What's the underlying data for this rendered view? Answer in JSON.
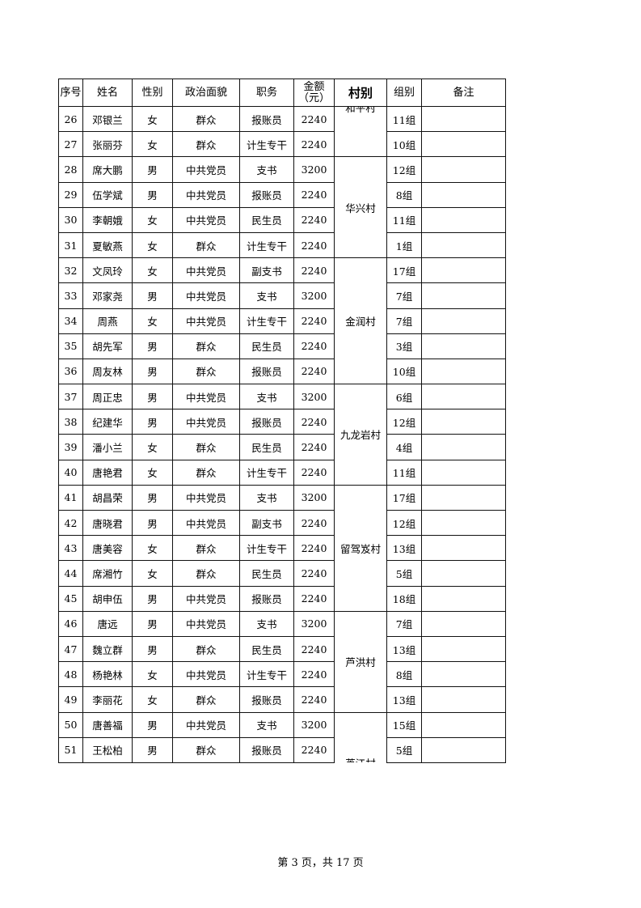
{
  "headers": [
    "序号",
    "姓名",
    "性别",
    "政治面貌",
    "职务",
    "金额（元）",
    "村别",
    "组别",
    "备注"
  ],
  "rows": [
    {
      "no": "26",
      "name": "邓银兰",
      "sex": "女",
      "political": "群众",
      "role": "报账员",
      "amount": "2240",
      "group": "11组",
      "note": ""
    },
    {
      "no": "27",
      "name": "张丽芬",
      "sex": "女",
      "political": "群众",
      "role": "计生专干",
      "amount": "2240",
      "group": "10组",
      "note": ""
    },
    {
      "no": "28",
      "name": "席大鹏",
      "sex": "男",
      "political": "中共党员",
      "role": "支书",
      "amount": "3200",
      "group": "12组",
      "note": ""
    },
    {
      "no": "29",
      "name": "伍学斌",
      "sex": "男",
      "political": "中共党员",
      "role": "报账员",
      "amount": "2240",
      "group": "8组",
      "note": ""
    },
    {
      "no": "30",
      "name": "李朝娥",
      "sex": "女",
      "political": "中共党员",
      "role": "民生员",
      "amount": "2240",
      "group": "11组",
      "note": ""
    },
    {
      "no": "31",
      "name": "夏敏燕",
      "sex": "女",
      "political": "群众",
      "role": "计生专干",
      "amount": "2240",
      "group": "1组",
      "note": ""
    },
    {
      "no": "32",
      "name": "文凤玲",
      "sex": "女",
      "political": "中共党员",
      "role": "副支书",
      "amount": "2240",
      "group": "17组",
      "note": ""
    },
    {
      "no": "33",
      "name": "邓家尧",
      "sex": "男",
      "political": "中共党员",
      "role": "支书",
      "amount": "3200",
      "group": "7组",
      "note": ""
    },
    {
      "no": "34",
      "name": "周燕",
      "sex": "女",
      "political": "中共党员",
      "role": "计生专干",
      "amount": "2240",
      "group": "7组",
      "note": ""
    },
    {
      "no": "35",
      "name": "胡先军",
      "sex": "男",
      "political": "群众",
      "role": "民生员",
      "amount": "2240",
      "group": "3组",
      "note": ""
    },
    {
      "no": "36",
      "name": "周友林",
      "sex": "男",
      "political": "群众",
      "role": "报账员",
      "amount": "2240",
      "group": "10组",
      "note": ""
    },
    {
      "no": "37",
      "name": "周正忠",
      "sex": "男",
      "political": "中共党员",
      "role": "支书",
      "amount": "3200",
      "group": "6组",
      "note": ""
    },
    {
      "no": "38",
      "name": "纪建华",
      "sex": "男",
      "political": "中共党员",
      "role": "报账员",
      "amount": "2240",
      "group": "12组",
      "note": ""
    },
    {
      "no": "39",
      "name": "潘小兰",
      "sex": "女",
      "political": "群众",
      "role": "民生员",
      "amount": "2240",
      "group": "4组",
      "note": ""
    },
    {
      "no": "40",
      "name": "唐艳君",
      "sex": "女",
      "political": "群众",
      "role": "计生专干",
      "amount": "2240",
      "group": "11组",
      "note": ""
    },
    {
      "no": "41",
      "name": "胡昌荣",
      "sex": "男",
      "political": "中共党员",
      "role": "支书",
      "amount": "3200",
      "group": "17组",
      "note": ""
    },
    {
      "no": "42",
      "name": "唐晓君",
      "sex": "男",
      "political": "中共党员",
      "role": "副支书",
      "amount": "2240",
      "group": "12组",
      "note": ""
    },
    {
      "no": "43",
      "name": "唐美容",
      "sex": "女",
      "political": "群众",
      "role": "计生专干",
      "amount": "2240",
      "group": "13组",
      "note": ""
    },
    {
      "no": "44",
      "name": "席湘竹",
      "sex": "女",
      "political": "群众",
      "role": "民生员",
      "amount": "2240",
      "group": "5组",
      "note": ""
    },
    {
      "no": "45",
      "name": "胡申伍",
      "sex": "男",
      "political": "中共党员",
      "role": "报账员",
      "amount": "2240",
      "group": "18组",
      "note": ""
    },
    {
      "no": "46",
      "name": "唐远",
      "sex": "男",
      "political": "中共党员",
      "role": "支书",
      "amount": "3200",
      "group": "7组",
      "note": ""
    },
    {
      "no": "47",
      "name": "魏立群",
      "sex": "男",
      "political": "群众",
      "role": "民生员",
      "amount": "2240",
      "group": "13组",
      "note": ""
    },
    {
      "no": "48",
      "name": "杨艳林",
      "sex": "女",
      "political": "中共党员",
      "role": "计生专干",
      "amount": "2240",
      "group": "8组",
      "note": ""
    },
    {
      "no": "49",
      "name": "李丽花",
      "sex": "女",
      "political": "群众",
      "role": "报账员",
      "amount": "2240",
      "group": "13组",
      "note": ""
    },
    {
      "no": "50",
      "name": "唐善福",
      "sex": "男",
      "political": "中共党员",
      "role": "支书",
      "amount": "3200",
      "group": "15组",
      "note": ""
    },
    {
      "no": "51",
      "name": "王松柏",
      "sex": "男",
      "political": "群众",
      "role": "报账员",
      "amount": "2240",
      "group": "5组",
      "note": ""
    }
  ],
  "villages": [
    {
      "name": "和平村",
      "span": 2,
      "clip": "top"
    },
    {
      "name": "华兴村",
      "span": 4
    },
    {
      "name": "金润村",
      "span": 5
    },
    {
      "name": "九龙岩村",
      "span": 4
    },
    {
      "name": "留驾岌村",
      "span": 5
    },
    {
      "name": "芦洪村",
      "span": 4
    },
    {
      "name": "芦江村",
      "span": 2,
      "clip": "bottom"
    }
  ],
  "footer": "第 3 页，共 17 页"
}
